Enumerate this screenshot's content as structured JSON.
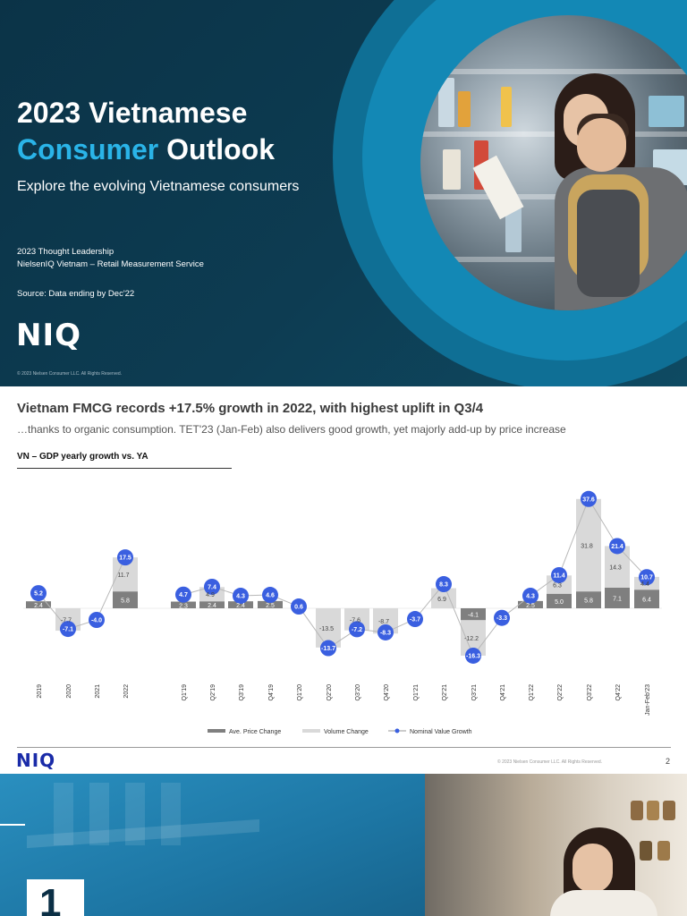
{
  "slide1": {
    "title_line1": "2023 Vietnamese",
    "title_accent": "Consumer",
    "title_rest": " Outlook",
    "subtitle": "Explore the evolving Vietnamese consumers",
    "meta_line1": "2023 Thought Leadership",
    "meta_line2": "NielsenIQ Vietnam – Retail Measurement Service",
    "source": "Source: Data ending by Dec'22",
    "logo": "NIQ",
    "copyright": "© 2023 Nielsen Consumer LLC. All Rights Reserved."
  },
  "slide2": {
    "title": "Vietnam FMCG records +17.5% growth in 2022, with highest uplift in Q3/4",
    "subtitle": "…thanks to organic consumption. TET'23 (Jan-Feb) also delivers good growth, yet majorly add-up by price increase",
    "chart_title": "VN – GDP yearly growth vs. YA",
    "logo": "NIQ",
    "copyright": "© 2023 Nielsen Consumer LLC. All Rights Reserved.",
    "page_number": "2"
  },
  "slide3": {
    "section_number": "1"
  },
  "colors": {
    "dark_navy": "#0d3c52",
    "accent_cyan": "#2ab4e8",
    "ring_blue": "#1388b5",
    "price_bar": "#7f7f7f",
    "volume_bar": "#d9d9d9",
    "value_marker": "#3a5fe0",
    "niq_blue": "#1a2ba8"
  },
  "chart_data": {
    "type": "bar",
    "categories": [
      "2019",
      "2020",
      "2021",
      "2022",
      "Q1'19",
      "Q2'19",
      "Q3'19",
      "Q4'19",
      "Q1'20",
      "Q2'20",
      "Q3'20",
      "Q4'20",
      "Q1'21",
      "Q2'21",
      "Q3'21",
      "Q4'21",
      "Q1'22",
      "Q2'22",
      "Q3'22",
      "Q4'22",
      "Jan-Feb'23"
    ],
    "series": [
      {
        "name": "Ave. Price Change",
        "type": "bar",
        "values": [
          2.4,
          null,
          null,
          5.8,
          2.3,
          2.4,
          2.4,
          2.5,
          null,
          null,
          null,
          null,
          null,
          null,
          -4.1,
          null,
          2.5,
          5.0,
          5.8,
          7.1,
          6.4
        ]
      },
      {
        "name": "Volume Change",
        "type": "bar",
        "values": [
          null,
          -7.7,
          null,
          11.7,
          null,
          4.9,
          null,
          null,
          null,
          -13.5,
          -7.6,
          -8.7,
          null,
          6.9,
          -12.2,
          null,
          null,
          6.3,
          31.8,
          14.3,
          4.4
        ]
      },
      {
        "name": "Nominal Value Growth",
        "type": "line",
        "values": [
          5.2,
          -7.1,
          -4.0,
          17.5,
          4.7,
          7.4,
          4.3,
          4.6,
          0.6,
          -13.7,
          -7.2,
          -8.3,
          -3.7,
          8.3,
          -16.3,
          -3.3,
          4.3,
          11.4,
          37.6,
          21.4,
          10.7
        ]
      }
    ],
    "legend": "bottom-center",
    "grid": false
  }
}
